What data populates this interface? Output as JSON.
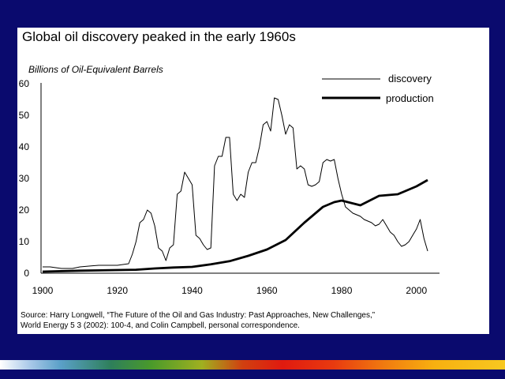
{
  "chart_data": {
    "type": "line",
    "title": "Global oil discovery peaked in the early 1960s",
    "ylabel": "Billions of Oil-Equivalent Barrels",
    "xlabel": "",
    "xlim": [
      1900,
      2005
    ],
    "ylim": [
      0,
      60
    ],
    "x_ticks": [
      "1900",
      "1920",
      "1940",
      "1960",
      "1980",
      "2000"
    ],
    "y_ticks": [
      "0",
      "10",
      "20",
      "30",
      "40",
      "50",
      "60"
    ],
    "grid": false,
    "legend_position": "top-right",
    "series": [
      {
        "name": "discovery",
        "style": "thin",
        "x": [
          1900,
          1902,
          1905,
          1908,
          1910,
          1913,
          1915,
          1920,
          1923,
          1924,
          1925,
          1926,
          1927,
          1928,
          1929,
          1930,
          1931,
          1932,
          1933,
          1934,
          1935,
          1936,
          1937,
          1938,
          1939,
          1940,
          1941,
          1942,
          1943,
          1944,
          1945,
          1946,
          1947,
          1948,
          1949,
          1950,
          1951,
          1952,
          1953,
          1954,
          1955,
          1956,
          1957,
          1958,
          1959,
          1960,
          1961,
          1962,
          1963,
          1964,
          1965,
          1966,
          1967,
          1968,
          1969,
          1970,
          1971,
          1972,
          1973,
          1974,
          1975,
          1976,
          1977,
          1978,
          1979,
          1980,
          1981,
          1982,
          1983,
          1984,
          1985,
          1986,
          1987,
          1988,
          1989,
          1990,
          1991,
          1992,
          1993,
          1994,
          1995,
          1996,
          1997,
          1998,
          1999,
          2000,
          2001,
          2002,
          2003
        ],
        "values": [
          2,
          2,
          1.5,
          1.5,
          2,
          2.3,
          2.5,
          2.5,
          3,
          6,
          10,
          16,
          17,
          20,
          19,
          15,
          8,
          7,
          4,
          8,
          9,
          25,
          26,
          32,
          30,
          28,
          12,
          11,
          9,
          7.5,
          8,
          34,
          37,
          37,
          43,
          43,
          25,
          23,
          25,
          24,
          32,
          35,
          35,
          40,
          47,
          48,
          45,
          55.5,
          55,
          50,
          44,
          47,
          46,
          33,
          34,
          33,
          28,
          27.5,
          28,
          29,
          35,
          36,
          35.5,
          36,
          30,
          25,
          21,
          20,
          19,
          18.5,
          18,
          17,
          16.5,
          16,
          15,
          15.5,
          17,
          15,
          13,
          12,
          10,
          8.5,
          9,
          10,
          12,
          14,
          17,
          11,
          7
        ]
      },
      {
        "name": "production",
        "style": "thick",
        "x": [
          1900,
          1910,
          1920,
          1925,
          1930,
          1935,
          1940,
          1945,
          1950,
          1955,
          1960,
          1965,
          1970,
          1975,
          1978,
          1980,
          1985,
          1990,
          1995,
          2000,
          2003
        ],
        "values": [
          0.5,
          0.8,
          1,
          1.1,
          1.5,
          1.8,
          2,
          2.8,
          3.8,
          5.5,
          7.5,
          10.5,
          16,
          21,
          22.5,
          23,
          21.5,
          24.5,
          25,
          27.5,
          29.5
        ]
      }
    ]
  },
  "source_note": {
    "line1": "Source: Harry Longwell, “The Future of the Oil and Gas Industry: Past Approaches, New Challenges,”",
    "line2": "World Energy 5 3 (2002): 100-4, and Colin Campbell, personal correspondence."
  }
}
